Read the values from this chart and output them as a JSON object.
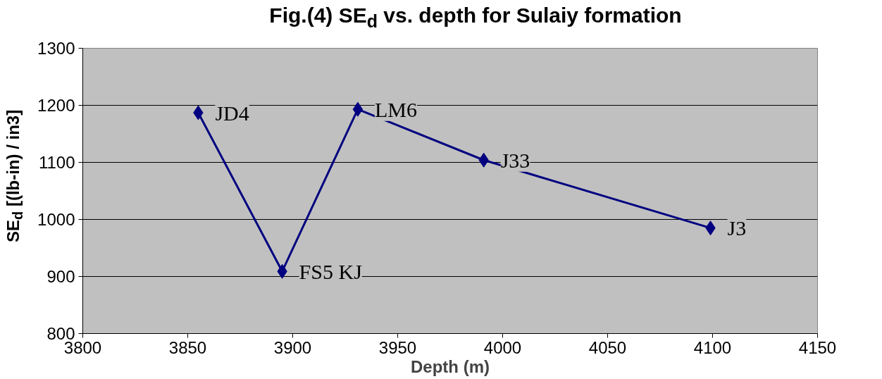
{
  "chart_data": {
    "type": "line",
    "title": "Fig.(4) SE$_{d}$ vs. depth for Sulaiy formation",
    "xlabel": "Depth (m)",
    "ylabel": "SE$_{d}$ [(lb-in) / in3]",
    "x": [
      3855,
      3895,
      3931,
      3991,
      4099
    ],
    "series": [
      {
        "color": "#000080",
        "values": [
          1187,
          909,
          1193,
          1104,
          985
        ]
      }
    ],
    "xlim": [
      3800,
      4150
    ],
    "xticks": [
      3800,
      3850,
      3900,
      3950,
      4000,
      4050,
      4100,
      4150
    ],
    "ylim": [
      800,
      1300
    ],
    "yticks": [
      800,
      900,
      1000,
      1100,
      1200,
      1300
    ],
    "grid": "y",
    "marker": "diamond",
    "line_style": "solid",
    "annotations": [
      {
        "text": "JD4",
        "x": 3855,
        "y": 1187
      },
      {
        "text": "FS5 KJ",
        "x": 3895,
        "y": 909
      },
      {
        "text": "LM6",
        "x": 3931,
        "y": 1193
      },
      {
        "text": "J33",
        "x": 3991,
        "y": 1104
      },
      {
        "text": "J3",
        "x": 4099,
        "y": 985
      }
    ]
  }
}
